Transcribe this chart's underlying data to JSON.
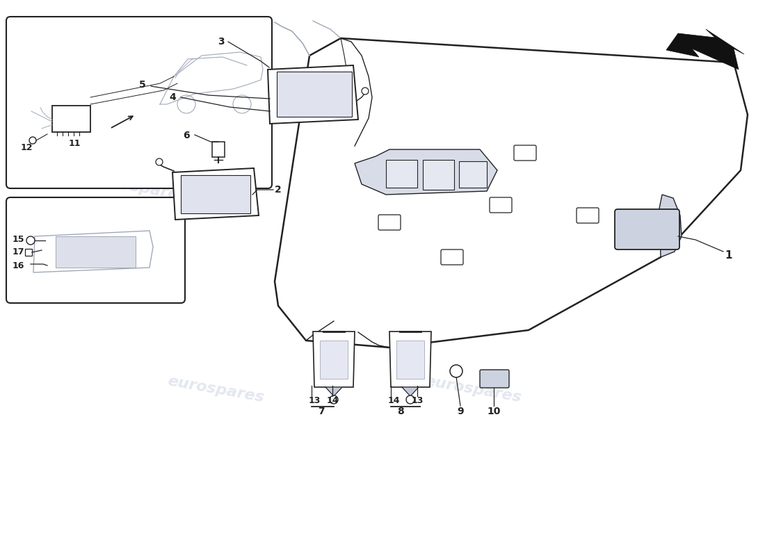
{
  "background_color": "#ffffff",
  "watermark_text": "eurospares",
  "watermark_color": "#c8d0e0",
  "line_color": "#222222",
  "sketch_color": "#a0a8b8"
}
